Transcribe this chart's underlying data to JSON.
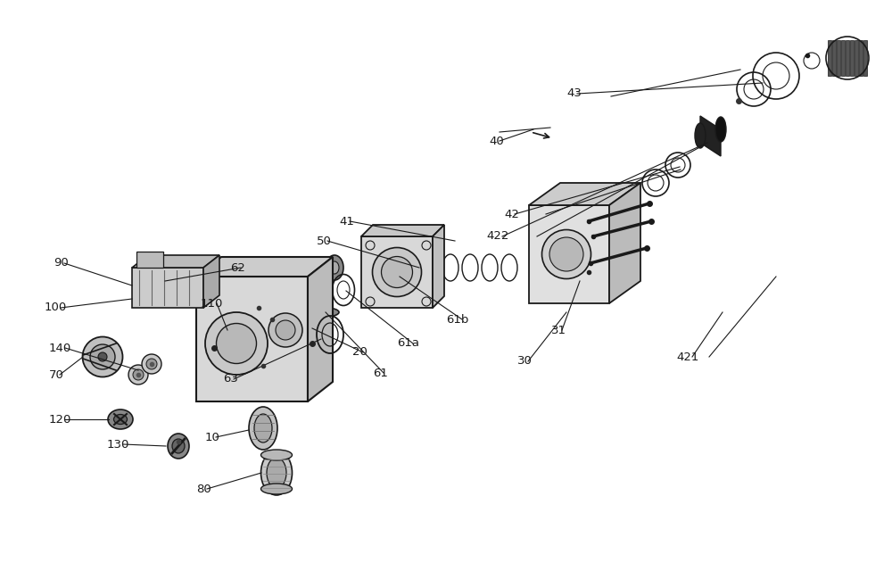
{
  "bg_color": "#ffffff",
  "line_color": "#1a1a1a",
  "label_color": "#000000",
  "fig_width": 10.0,
  "fig_height": 6.49,
  "dpi": 100,
  "xlim": [
    0,
    1000
  ],
  "ylim": [
    0,
    649
  ]
}
